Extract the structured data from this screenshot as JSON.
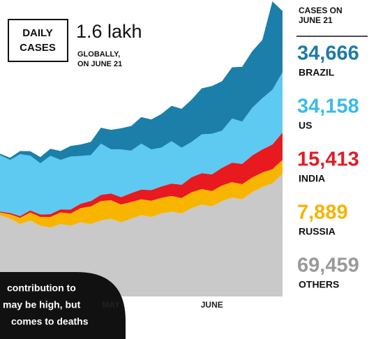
{
  "chart_data": {
    "type": "stacked-area",
    "box_label": [
      "DAILY",
      "CASES"
    ],
    "title": "1.6 lakh",
    "subtitle": [
      "GLOBALLY,",
      "ON JUNE 21"
    ],
    "legend_title": [
      "CASES ON",
      "JUNE 21"
    ],
    "annotation": [
      "contribution to",
      "may be high, but",
      "comes to deaths"
    ],
    "categories": [
      null,
      null,
      null,
      null,
      null,
      null,
      null,
      null,
      null,
      null,
      null,
      "MAY",
      null,
      null,
      null,
      null,
      null,
      null,
      null,
      null,
      null,
      "JUNE",
      null,
      null,
      null,
      null,
      null,
      null,
      null
    ],
    "series": [
      {
        "name": "OTHERS",
        "color": "#c9c9c9",
        "label_color": "#9a9a9a",
        "value_label": "69,459",
        "values": [
          46000,
          44000,
          41000,
          43000,
          40000,
          39000,
          41000,
          40000,
          42000,
          41000,
          43000,
          44000,
          42000,
          44000,
          46000,
          45000,
          47000,
          48000,
          47000,
          50000,
          52000,
          51000,
          54000,
          56000,
          55000,
          59000,
          62000,
          64000,
          69459
        ]
      },
      {
        "name": "RUSSIA",
        "color": "#f7b500",
        "label_color": "#f5b400",
        "value_label": "7,889",
        "values": [
          1500,
          2500,
          3500,
          4500,
          5000,
          6000,
          6500,
          7000,
          8000,
          10000,
          11000,
          10500,
          10000,
          9500,
          9000,
          9200,
          8800,
          8900,
          8700,
          9000,
          8800,
          8600,
          8800,
          8700,
          8500,
          8300,
          8200,
          8000,
          7889
        ]
      },
      {
        "name": "INDIA",
        "color": "#e8191f",
        "label_color": "#e31b23",
        "value_label": "15,413",
        "values": [
          500,
          800,
          1000,
          1200,
          1400,
          1600,
          1800,
          2200,
          2500,
          3000,
          3500,
          3800,
          4200,
          5000,
          5500,
          6000,
          6500,
          7000,
          7500,
          8500,
          9000,
          9500,
          10000,
          11000,
          11500,
          12500,
          13000,
          14000,
          15413
        ]
      },
      {
        "name": "US",
        "color": "#5ec9f1",
        "label_color": "#3bbbe8",
        "value_label": "34,158",
        "values": [
          32000,
          30000,
          35000,
          31000,
          29000,
          33000,
          28000,
          30000,
          27000,
          26000,
          29000,
          25000,
          27000,
          24000,
          26000,
          23000,
          22000,
          24000,
          21000,
          20000,
          22000,
          23000,
          21000,
          25000,
          24000,
          27000,
          29000,
          31000,
          34158
        ]
      },
      {
        "name": "BRAZIL",
        "color": "#1b7fa9",
        "label_color": "#1f7ba6",
        "value_label": "34,666",
        "values": [
          800,
          1200,
          1800,
          2500,
          3500,
          4000,
          5000,
          6000,
          6500,
          7500,
          9000,
          11000,
          12000,
          14000,
          15000,
          17000,
          19000,
          20000,
          22000,
          24000,
          26000,
          27000,
          28000,
          29000,
          31000,
          32000,
          33000,
          50000,
          34666
        ]
      }
    ]
  }
}
